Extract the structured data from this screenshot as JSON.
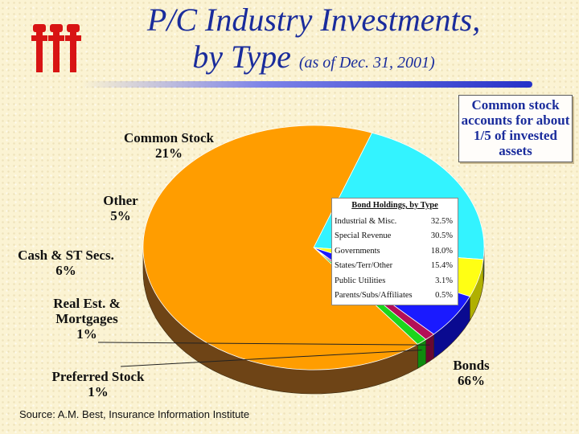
{
  "slide": {
    "title_line1": "P/C Industry Investments,",
    "title_line2": "by Type",
    "title_date": "(as of Dec. 31, 2001)",
    "callout": "Common stock accounts for about 1/5 of invested assets",
    "source": "Source: A.M. Best, Insurance Information Institute"
  },
  "chart_data": {
    "type": "pie",
    "categories": [
      "Common Stock",
      "Other",
      "Cash & ST Secs.",
      "Real Est. & Mortgages",
      "Preferred Stock",
      "Bonds"
    ],
    "values": [
      21,
      5,
      6,
      1,
      1,
      66
    ],
    "value_labels": [
      "21%",
      "5%",
      "6%",
      "1%",
      "1%",
      "66%"
    ],
    "colors": [
      "#33f3ff",
      "#ffff14",
      "#1a1aff",
      "#b40f57",
      "#1cd61c",
      "#ff9d00"
    ],
    "side_colors": [
      "#1aa6b0",
      "#b0b000",
      "#0a0a90",
      "#6a0830",
      "#0f8a0f",
      "#6e4416"
    ],
    "start_angle_deg": -70,
    "perspective_3d": true,
    "legend": "none",
    "inset_table": {
      "title": "Bond Holdings, by Type",
      "rows": [
        {
          "label": "Industrial & Misc.",
          "value": "32.5%"
        },
        {
          "label": "Special Revenue",
          "value": "30.5%"
        },
        {
          "label": "Governments",
          "value": "18.0%"
        },
        {
          "label": "States/Terr/Other",
          "value": "15.4%"
        },
        {
          "label": "Public Utilities",
          "value": "3.1%"
        },
        {
          "label": "Parents/Subs/Affiliates",
          "value": "0.5%"
        }
      ]
    }
  }
}
